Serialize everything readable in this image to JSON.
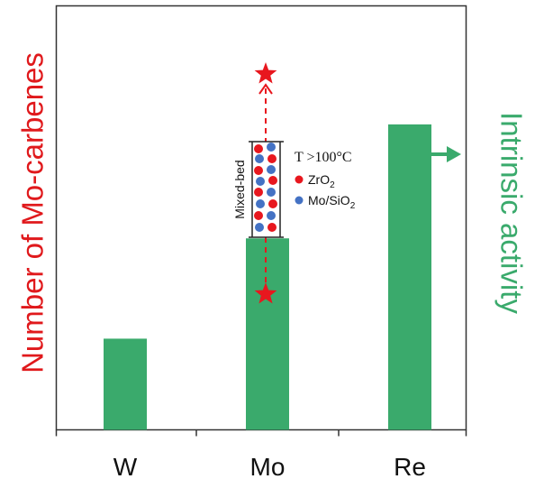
{
  "chart_data": {
    "type": "bar",
    "categories": [
      "W",
      "Mo",
      "Re"
    ],
    "values": [
      1,
      2.1,
      3.35
    ],
    "ylim": [
      0,
      4.65
    ],
    "left_ylabel": "Number of Mo-carbenes",
    "right_ylabel": "Intrinsic activity",
    "bar_color": "#3aaa6c",
    "left_label_color": "#e0191c",
    "right_label_color": "#3aaa6c",
    "grid": false,
    "legend": "none"
  },
  "inset": {
    "bed_label": "Mixed-bed",
    "condition": "T >100°C",
    "legend": [
      {
        "name": "ZrO",
        "sub": "2",
        "color": "#e8171e"
      },
      {
        "name": "Mo/SiO",
        "sub": "2",
        "color": "#4472c4"
      }
    ],
    "star_color": "#e8171e"
  }
}
